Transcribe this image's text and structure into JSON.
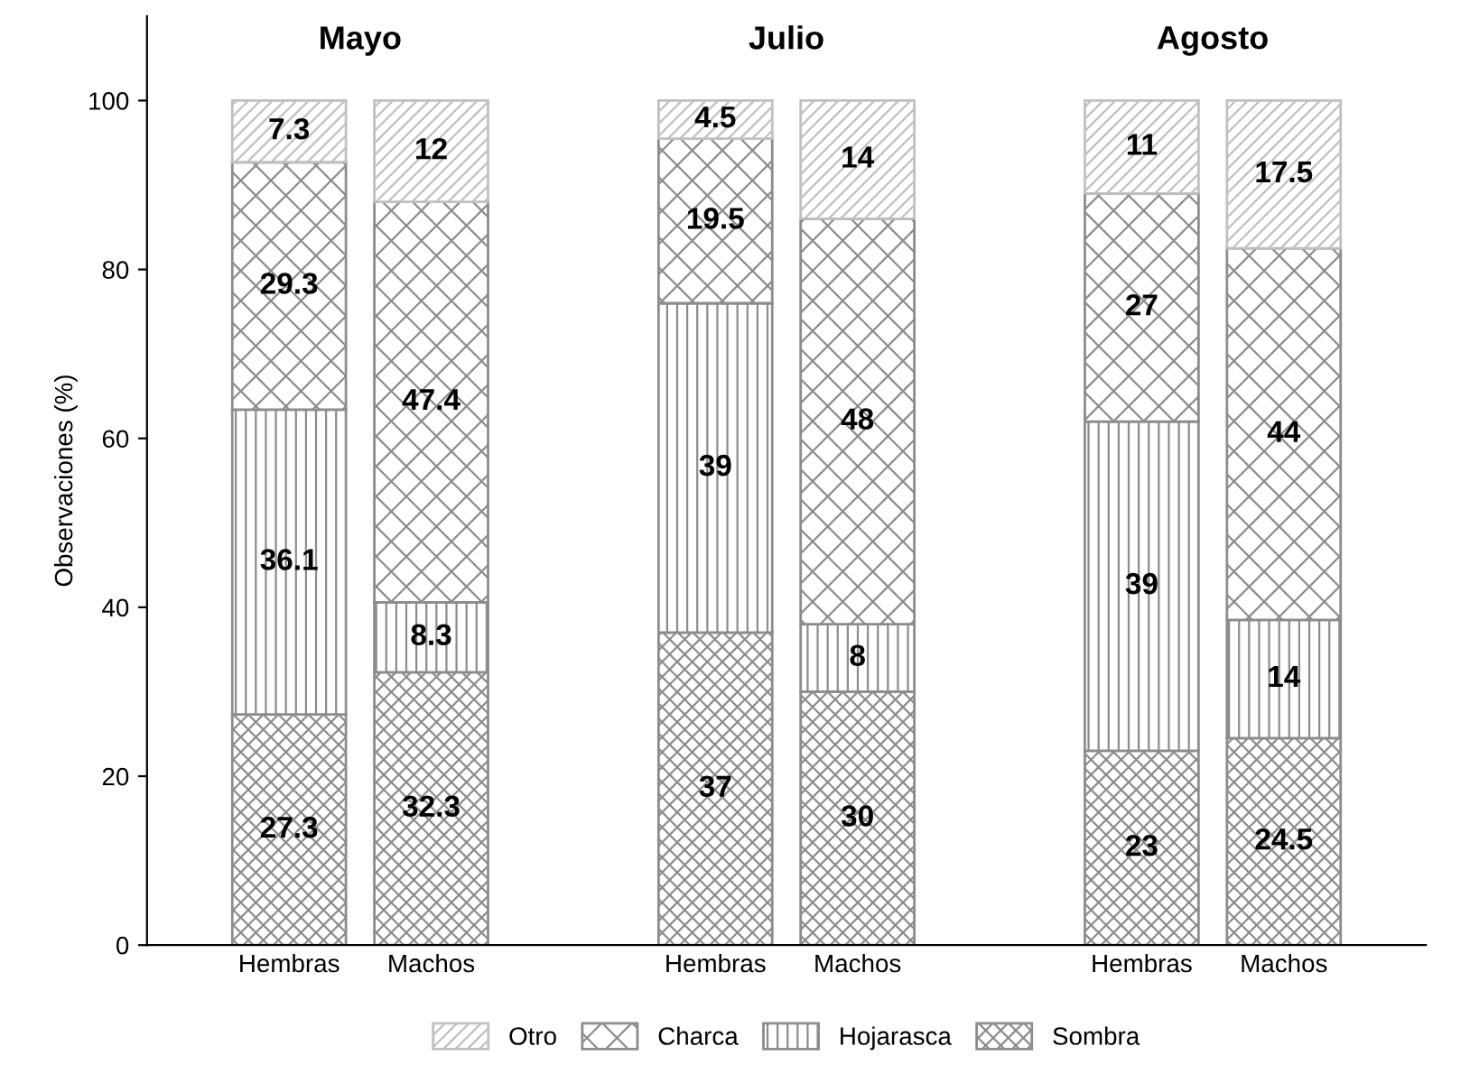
{
  "chart_data": {
    "type": "bar",
    "stacked": true,
    "ylabel": "Observaciones (%)",
    "categories": [
      "Hembras",
      "Machos",
      null,
      "Hembras",
      "Machos",
      null,
      "Hembras",
      "Machos"
    ],
    "annotations": [
      "Mayo",
      "Julio",
      "Agosto"
    ],
    "series": [
      {
        "name": "Sombra",
        "color": "#8c8c8c",
        "values": [
          27.3,
          32.3,
          null,
          37,
          30,
          null,
          23,
          24.5
        ]
      },
      {
        "name": "Hojarasca",
        "color": "#8c8c8c",
        "values": [
          36.1,
          8.3,
          null,
          39,
          8,
          null,
          39,
          14
        ]
      },
      {
        "name": "Charca",
        "color": "#8c8c8c",
        "values": [
          29.3,
          47.4,
          null,
          19.5,
          48,
          null,
          27,
          44
        ]
      },
      {
        "name": "Otro",
        "color": "#c0c0c0",
        "values": [
          7.3,
          12,
          null,
          4.5,
          14,
          null,
          11,
          17.5
        ]
      }
    ],
    "ylim": [
      0,
      110
    ],
    "yticks": [
      0,
      20,
      40,
      60,
      80,
      100
    ],
    "data_labels": true,
    "legend": "bottom",
    "grid": false
  }
}
